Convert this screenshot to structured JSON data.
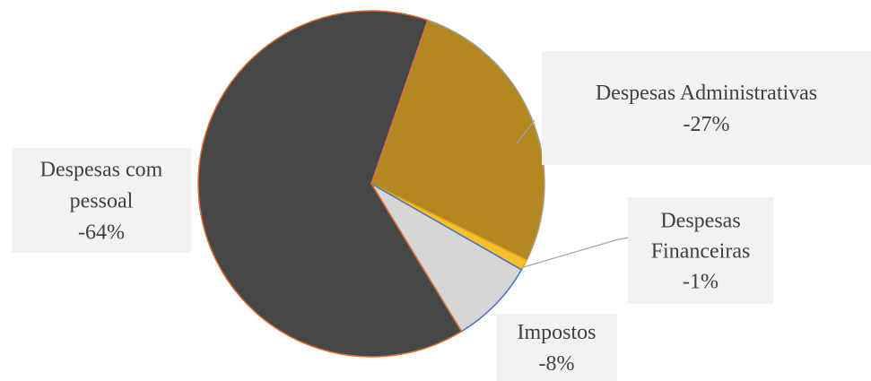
{
  "chart_data": {
    "type": "pie",
    "title": "",
    "slices": [
      {
        "name": "Despesas Administrativas",
        "value": 27,
        "label": "-27%",
        "color": "#b38820",
        "edge": "#9e9e9e"
      },
      {
        "name": "Despesas Financeiras",
        "value": 1,
        "label": "-1%",
        "color": "#f5c02a",
        "edge": "#e8a317"
      },
      {
        "name": "Impostos",
        "value": 8,
        "label": "-8%",
        "color": "#d6d6d6",
        "edge": "#4472c4"
      },
      {
        "name": "Despesas com pessoal",
        "value": 64,
        "label": "-64%",
        "color": "#474747",
        "edge": "#e07030"
      }
    ],
    "data_labels": [
      {
        "lines": [
          "Despesas Administrativas",
          "-27%"
        ]
      },
      {
        "lines": [
          "Despesas",
          "Financeiras",
          "-1%"
        ]
      },
      {
        "lines": [
          "Impostos",
          "-8%"
        ]
      },
      {
        "lines": [
          "Despesas com",
          "pessoal",
          "-64%"
        ]
      }
    ],
    "start_angle_deg": 19,
    "legend": "none"
  }
}
